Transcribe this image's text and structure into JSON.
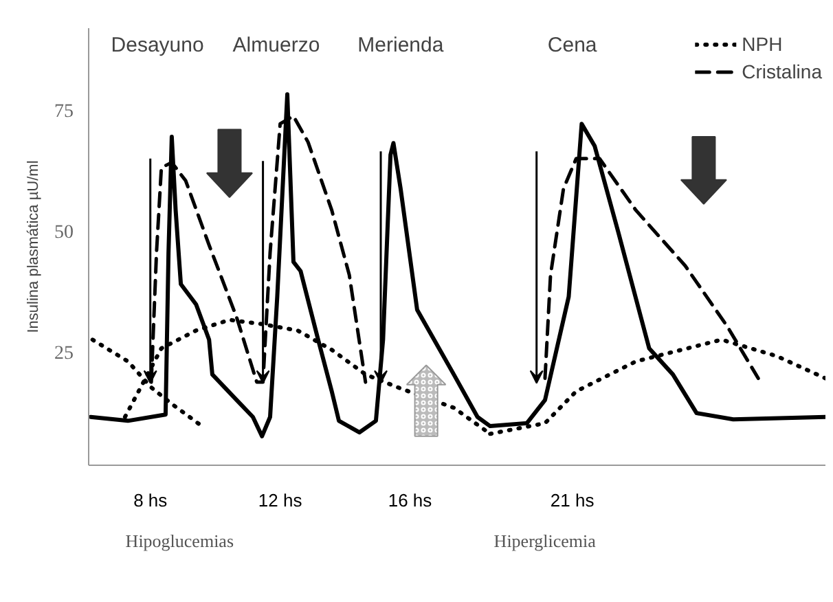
{
  "chart_data": {
    "type": "line",
    "ylabel": "Insulina plasmática µU/ml",
    "xlim": [
      6.1,
      28.8
    ],
    "ylim": [
      1.5,
      92
    ],
    "xticks": [
      {
        "value": 8,
        "label": "8 hs"
      },
      {
        "value": 12,
        "label": "12 hs"
      },
      {
        "value": 16,
        "label": "16 hs"
      },
      {
        "value": 21,
        "label": "21 hs"
      }
    ],
    "yticks": [
      25,
      50,
      75
    ],
    "grid": false,
    "legend": "top right",
    "series": [
      {
        "color": "#000000",
        "line_style": "solid",
        "x": [
          6.16,
          7.31,
          8.47,
          8.56,
          8.66,
          8.78,
          8.94,
          9.41,
          9.81,
          9.91,
          10.66,
          11.16,
          11.44,
          11.69,
          11.91,
          12.22,
          12.41,
          12.63,
          13.17,
          13.59,
          13.81,
          14.44,
          14.95,
          15.17,
          15.4,
          15.49,
          15.71,
          16.22,
          17.35,
          18.08,
          18.47,
          19.6,
          20.16,
          20.89,
          21.29,
          21.69,
          22.42,
          23.37,
          24.1,
          24.83,
          25.96,
          28.8
        ],
        "values": [
          11.5,
          10.7,
          12.0,
          45.5,
          69.5,
          54.3,
          39.0,
          34.8,
          27.5,
          20.3,
          15.0,
          11.5,
          7.5,
          11.5,
          36.4,
          78.3,
          43.6,
          41.7,
          27.5,
          16.8,
          10.7,
          8.3,
          10.7,
          27.5,
          65.8,
          68.2,
          58.8,
          33.7,
          20.3,
          11.5,
          9.6,
          10.2,
          15.0,
          36.4,
          72.2,
          67.6,
          49.7,
          25.7,
          20.3,
          12.3,
          11.0,
          11.5
        ]
      },
      {
        "name": "NPH",
        "color": "#000000",
        "line_style": "dotted",
        "x": [
          6.22,
          7.31,
          8.03,
          8.66,
          9.59,
          null,
          7.22,
          8.34,
          9.41,
          10.44,
          11.47,
          12.54,
          13.59,
          14.63,
          15.71,
          17.35,
          18.47,
          null,
          18.47,
          20.16,
          21.12,
          22.96,
          25.6,
          27.3,
          28.8
        ],
        "values": [
          27.5,
          23.0,
          17.6,
          14.2,
          9.6,
          null,
          11.5,
          25.7,
          29.4,
          31.6,
          30.7,
          29.4,
          25.4,
          20.3,
          17.4,
          13.4,
          8.0,
          null,
          8.0,
          10.2,
          16.8,
          23.0,
          27.5,
          24.1,
          19.5
        ]
      },
      {
        "name": "Cristalina",
        "color": "#000000",
        "line_style": "dashed",
        "x": [
          8.03,
          8.19,
          8.34,
          8.66,
          9.09,
          9.81,
          10.66,
          11.28,
          11.47,
          11.69,
          12.0,
          12.41,
          12.86,
          13.59,
          14.13,
          14.63,
          null,
          20.16,
          20.33,
          20.73,
          21.12,
          21.84,
          22.96,
          24.48,
          25.78,
          26.73
        ],
        "values": [
          18.7,
          45.5,
          63.1,
          64.2,
          60.4,
          47.1,
          32.1,
          18.7,
          18.7,
          45.5,
          72.2,
          73.8,
          68.4,
          54.3,
          40.9,
          18.7,
          null,
          19.5,
          40.9,
          58.8,
          65.0,
          65.0,
          54.3,
          42.8,
          30.2,
          19.5
        ]
      }
    ],
    "annotations": [
      "Desayuno",
      "Almuerzo",
      "Merienda",
      "Cena",
      "Hipoglucemias",
      "Hiperglicemia"
    ]
  }
}
